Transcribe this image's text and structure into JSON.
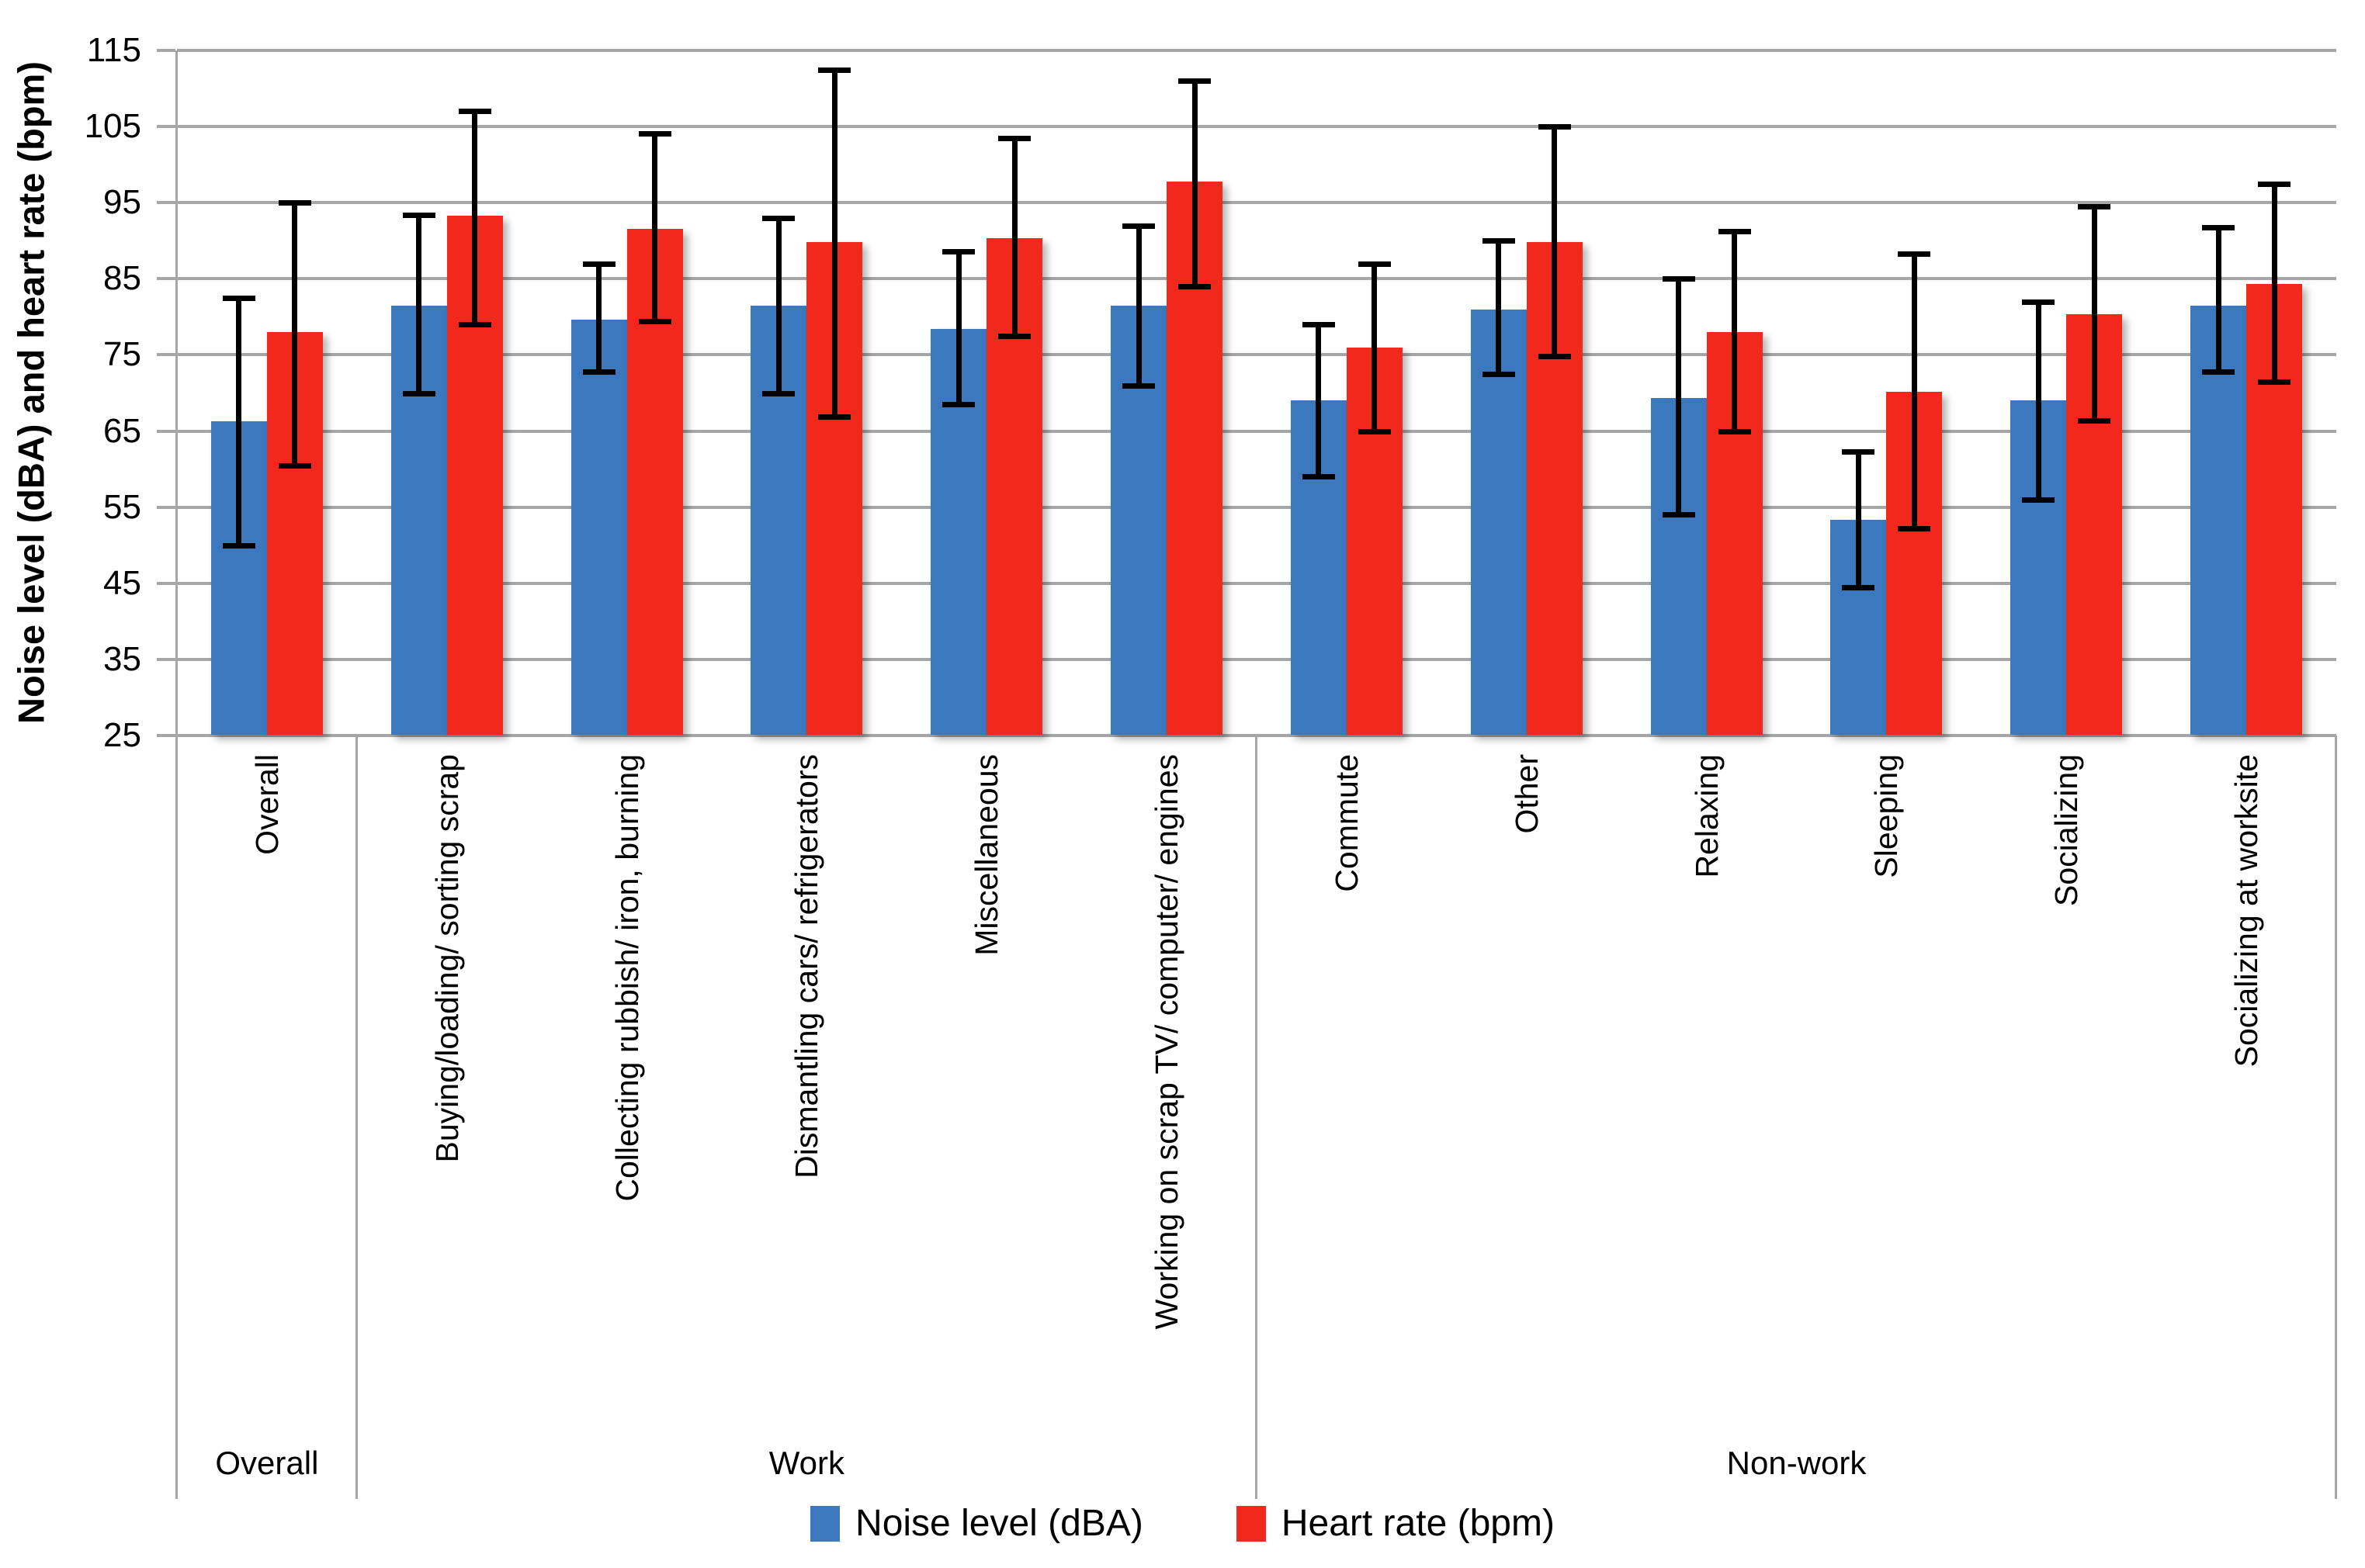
{
  "chart_data": {
    "type": "bar",
    "title": "",
    "ylabel": "Noise level (dBA) and heart rate (bpm)",
    "xlabel": "",
    "ylim": [
      25,
      115
    ],
    "ytick_step": 10,
    "grid": true,
    "legend_position": "bottom",
    "grid_color": "#a6a6a6",
    "error_bar_color": "#000000",
    "categories": [
      "Overall",
      "Buying/loading/ sorting scrap",
      "Collecting rubbish/ iron, burning",
      "Dismantling cars/ refrigerators",
      "Miscellaneous",
      "Working on scrap TV/ computer/ engines",
      "Commute",
      "Other",
      "Relaxing",
      "Sleeping",
      "Socializing",
      "Socializing at worksite"
    ],
    "group_labels": [
      {
        "label": "Overall",
        "span": 1
      },
      {
        "label": "Work",
        "span": 5
      },
      {
        "label": "Non-work",
        "span": 6
      }
    ],
    "series": [
      {
        "name": "Noise level (dBA)",
        "color": "#3b78bd",
        "values": [
          66.3,
          81.5,
          79.6,
          81.5,
          78.4,
          81.5,
          69.0,
          81.0,
          69.3,
          53.3,
          69.0,
          81.5
        ],
        "error_low": [
          50.0,
          70.0,
          72.8,
          70.0,
          68.5,
          71.0,
          59.0,
          72.5,
          54.0,
          44.5,
          56.0,
          72.8
        ],
        "error_high": [
          82.5,
          93.4,
          87.0,
          93.0,
          88.6,
          92.0,
          79.0,
          90.0,
          85.0,
          62.3,
          82.0,
          91.8
        ]
      },
      {
        "name": "Heart rate (bpm)",
        "color": "#f3281d",
        "values": [
          78.0,
          93.3,
          91.6,
          89.8,
          90.3,
          97.8,
          76.0,
          89.8,
          78.0,
          70.2,
          80.3,
          84.3
        ],
        "error_low": [
          60.5,
          79.0,
          79.4,
          66.9,
          77.5,
          84.0,
          65.0,
          74.8,
          65.0,
          52.2,
          66.4,
          71.5
        ],
        "error_high": [
          95.0,
          107.0,
          104.1,
          112.5,
          103.5,
          111.0,
          87.0,
          105.0,
          91.3,
          88.3,
          94.5,
          97.5
        ]
      }
    ]
  }
}
